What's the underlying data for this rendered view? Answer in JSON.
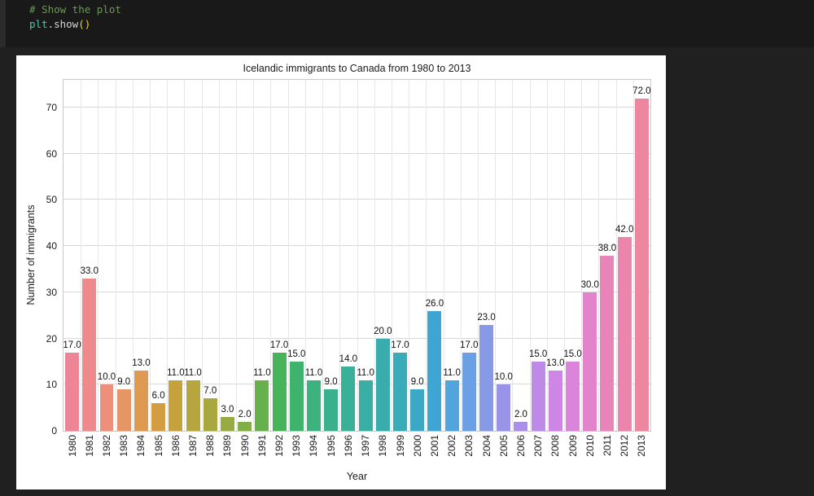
{
  "theme": {
    "page_background": "#202021",
    "code_cell_background": "#191919",
    "gutter_background": "#2b2b2b",
    "figure_background": "#ffffff",
    "grid_color": "#d8d8d8",
    "spine_color": "#c9c9c9",
    "chart_text_color": "#1a1a1a"
  },
  "code_cell": {
    "lines": [
      {
        "tokens": [
          {
            "text": "# Show the plot",
            "color": "#6A9955"
          }
        ]
      },
      {
        "tokens": [
          {
            "text": "plt",
            "color": "#4EC9B0"
          },
          {
            "text": ".",
            "color": "#d4d4d4"
          },
          {
            "text": "show",
            "color": "#d4d4d4"
          },
          {
            "text": "()",
            "color": "#ffd700"
          }
        ]
      }
    ]
  },
  "chart_data": {
    "type": "bar",
    "title": "Icelandic immigrants to Canada from 1980 to 2013",
    "xlabel": "Year",
    "ylabel": "Number of immigrants",
    "categories": [
      "1980",
      "1981",
      "1982",
      "1983",
      "1984",
      "1985",
      "1986",
      "1987",
      "1988",
      "1989",
      "1990",
      "1991",
      "1992",
      "1993",
      "1994",
      "1995",
      "1996",
      "1997",
      "1998",
      "1999",
      "2000",
      "2001",
      "2002",
      "2003",
      "2004",
      "2005",
      "2006",
      "2007",
      "2008",
      "2009",
      "2010",
      "2011",
      "2012",
      "2013"
    ],
    "values": [
      17,
      33,
      10,
      9,
      13,
      6,
      11,
      11,
      7,
      3,
      2,
      11,
      17,
      15,
      11,
      9,
      14,
      11,
      20,
      17,
      9,
      26,
      11,
      17,
      23,
      10,
      2,
      15,
      13,
      15,
      30,
      38,
      42,
      72
    ],
    "bar_labels": [
      "17.0",
      "33.0",
      "10.0",
      "9.0",
      "13.0",
      "6.0",
      "11.0",
      "11.0",
      "7.0",
      "3.0",
      "2.0",
      "11.0",
      "17.0",
      "15.0",
      "11.0",
      "9.0",
      "14.0",
      "11.0",
      "20.0",
      "17.0",
      "9.0",
      "26.0",
      "11.0",
      "17.0",
      "23.0",
      "10.0",
      "2.0",
      "15.0",
      "13.0",
      "15.0",
      "30.0",
      "38.0",
      "42.0",
      "72.0"
    ],
    "bar_colors": [
      "#ee8597",
      "#ee8a8b",
      "#ec907b",
      "#e69566",
      "#dd9a50",
      "#d29e41",
      "#c5a23c",
      "#b7a53d",
      "#a8a83f",
      "#97ab42",
      "#82ae46",
      "#66b14c",
      "#47b35a",
      "#3fb36e",
      "#3cb27e",
      "#3ab18c",
      "#39b098",
      "#39afa3",
      "#39adae",
      "#3aabb9",
      "#3ba9c5",
      "#3ea6d2",
      "#52a4dc",
      "#6ba0e4",
      "#869ae7",
      "#9a94e8",
      "#ac8fe9",
      "#bd8ae8",
      "#cd86e5",
      "#da84dc",
      "#e383cb",
      "#e984ba",
      "#eb85ac",
      "#ed869f"
    ],
    "ylim": [
      0,
      76
    ],
    "yticks": [
      0,
      10,
      20,
      30,
      40,
      50,
      60,
      70
    ],
    "grid": true,
    "legend": "none"
  }
}
